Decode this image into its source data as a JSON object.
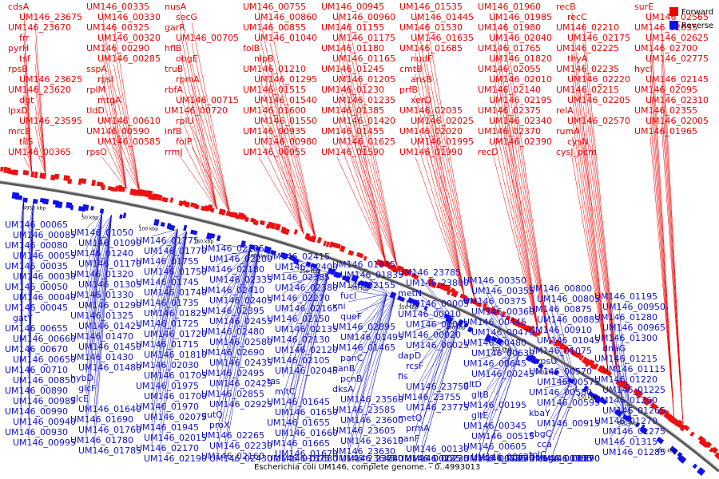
{
  "caption": "Escherichia coli UM146, complete genome. - 0..4993013",
  "legend": [
    {
      "label": "Forward",
      "color": "#ee0000"
    },
    {
      "label": "Reverse",
      "color": "#1010ee"
    }
  ],
  "ticks": [
    "4950 kbp",
    "50 kbp",
    "100 kbp",
    "150 kbp",
    "200 kbp",
    "250 kbp",
    "300 kbp",
    "350 kbp",
    "400 kbp",
    "450 kbp",
    "500 kbp",
    "550 kbp",
    "600 kbp",
    "650 kbp"
  ],
  "forward_labels": [
    "cdsA",
    "UM146_23675",
    "UM146_23670",
    "frr",
    "pyrH",
    "tsf",
    "rpsB",
    "UM146_23625",
    "UM146_23620",
    "dgt",
    "lpxD",
    "UM146_23595",
    "mrcB",
    "tilS",
    "UM146_00365",
    "UM146_00335",
    "UM146_00330",
    "UM146_00325",
    "UM146_00320",
    "UM146_00290",
    "UM146_00285",
    "sspA",
    "rpsI",
    "rplM",
    "mtgA",
    "tldD",
    "UM146_00610",
    "UM146_00590",
    "UM146_00585",
    "rpsO",
    "nusA",
    "secG",
    "garR",
    "UM146_00705",
    "hflB",
    "obgE",
    "truB",
    "rpmA",
    "rbfA",
    "UM146_00715",
    "UM146_00720",
    "rplU",
    "infB",
    "folP",
    "rrmJ",
    "UM146_00755",
    "UM146_00860",
    "UM146_00855",
    "UM146_01040",
    "folB",
    "nlpB",
    "UM146_01210",
    "UM146_01295",
    "UM146_01515",
    "UM146_01540",
    "UM146_01600",
    "UM146_01550",
    "UM146_00935",
    "UM146_00980",
    "UM146_00955",
    "UM146_00945",
    "UM146_00960",
    "UM146_01155",
    "UM146_01175",
    "UM146_01180",
    "UM146_01165",
    "UM146_01245",
    "UM146_01205",
    "UM146_01230",
    "UM146_01235",
    "UM146_01385",
    "UM146_01420",
    "UM146_01455",
    "UM146_01625",
    "UM146_01590",
    "UM146_01535",
    "UM146_01445",
    "UM146_01530",
    "UM146_01635",
    "UM146_01685",
    "nudF",
    "cmtB",
    "ansB",
    "prfB",
    "xerD",
    "UM146_02035",
    "UM146_02025",
    "UM146_02020",
    "UM146_01995",
    "UM146_01990",
    "UM146_01960",
    "UM146_01985",
    "UM146_01980",
    "UM146_02040",
    "UM146_01765",
    "UM146_01820",
    "UM146_02055",
    "UM146_02010",
    "UM146_02140",
    "UM146_02195",
    "UM146_02375",
    "UM146_02340",
    "UM146_02370",
    "UM146_02390",
    "recD",
    "recB",
    "recC",
    "UM146_02210",
    "UM146_02175",
    "UM146_02225",
    "thyA",
    "UM146_02235",
    "UM146_02220",
    "UM146_02215",
    "UM146_02205",
    "relA",
    "UM146_02570",
    "rumA",
    "cysN",
    "cysJ_pcm",
    "surE",
    "UM146_02565",
    "UM146_02635",
    "UM146_02625",
    "UM146_02700",
    "UM146_02775",
    "hycI",
    "UM146_02145",
    "UM146_02095",
    "UM146_02310",
    "UM146_02355",
    "UM146_02005",
    "UM146_01965"
  ],
  "reverse_labels": [
    "UM146_00065",
    "UM146_00085",
    "UM146_00080",
    "UM146_00055",
    "UM146_00035",
    "UM146_00030",
    "UM146_00050",
    "UM146_00040",
    "UM146_00045",
    "gatY",
    "UM146_00655",
    "UM146_00660",
    "UM146_00670",
    "UM146_00650",
    "UM146_00710",
    "UM146_00850",
    "UM146_00890",
    "UM146_00985",
    "UM146_00990",
    "UM146_00940",
    "UM146_00930",
    "UM146_00995",
    "UM146_01050",
    "UM146_01090",
    "UM146_01240",
    "UM146_01170",
    "UM146_01320",
    "UM146_01305",
    "UM146_01330",
    "UM146_01290",
    "UM146_01325",
    "UM146_01425",
    "UM146_01470",
    "UM146_01450",
    "UM146_01430",
    "UM146_01480",
    "hybD",
    "glcF",
    "glcE",
    "UM146_01640",
    "UM146_01690",
    "UM146_01760",
    "UM146_01780",
    "UM146_01785",
    "UM146_01775",
    "UM146_01770",
    "UM146_01755",
    "UM146_01750",
    "UM146_01745",
    "UM146_01740",
    "UM146_01735",
    "UM146_01825",
    "UM146_01725",
    "UM146_01720",
    "UM146_01715",
    "UM146_01810",
    "UM146_02030",
    "UM146_01705",
    "UM146_01975",
    "UM146_01700",
    "UM146_01970",
    "UM146_02075",
    "UM146_01945",
    "UM146_02015",
    "UM146_02170",
    "UM146_02190",
    "UM146_02185",
    "UM146_02200",
    "UM146_02180",
    "UM146_02335",
    "UM146_02410",
    "UM146_02405",
    "UM146_02395",
    "UM146_02455",
    "UM146_02480",
    "UM146_02580",
    "UM146_02690",
    "UM146_02435",
    "UM146_02495",
    "UM146_02425",
    "UM146_02855",
    "UM146_02925",
    "gutQ",
    "proX",
    "UM146_02265",
    "UM146_02230",
    "UM146_02160",
    "UM146_02430",
    "UM146_02415",
    "UM146_02400",
    "UM146_02385",
    "UM146_02380",
    "UM146_02270",
    "UM146_02165",
    "UM146_02150",
    "UM146_02135",
    "UM146_02130",
    "UM146_02120",
    "UM146_02105",
    "UM146_02045",
    "tas",
    "mltC",
    "UM146_01645",
    "UM146_01650",
    "UM146_01655",
    "UM146_01660",
    "UM146_01665",
    "UM146_01670",
    "UM146_01675",
    "UM146_01680",
    "UM146_01845",
    "UM146_01835",
    "UM146_02155",
    "fucI",
    "xni",
    "queF",
    "UM146_02895",
    "UM146_01495",
    "UM146_01465",
    "panC",
    "panB",
    "pcnB",
    "dksA",
    "UM146_23560",
    "UM146_23585",
    "UM146_23600",
    "UM146_23605",
    "UM146_23610",
    "UM146_23630",
    "UM146_23640",
    "UM146_23645",
    "UM146_23780",
    "UM146_23785",
    "UM146_23800",
    "metN",
    "UM146_00005",
    "UM146_00010",
    "UM146_00015",
    "UM146_00020",
    "UM146_00025",
    "dapD",
    "rcsF",
    "fis",
    "UM146_23750",
    "UM146_23755",
    "UM146_23775",
    "metQ",
    "prmA",
    "panF",
    "UM146_00130",
    "UM146_00135",
    "UM146_00220",
    "UM146_00225",
    "UM146_00235",
    "UM146_00350",
    "UM146_00355",
    "UM146_00375",
    "UM146_00360",
    "UM146_00445",
    "UM146_00470",
    "UM146_00480",
    "UM146_00630",
    "UM146_00645",
    "UM146_00245",
    "gltD",
    "gltB",
    "UM146_00195",
    "gltE",
    "UM146_00345",
    "UM146_00515",
    "UM146_00605",
    "UM146_00620",
    "UM146_00625",
    "UM146_00635",
    "UM146_00785",
    "UM146_00790",
    "UM146_00800",
    "UM146_00805",
    "UM146_00875",
    "UM146_00885",
    "UM146_00910",
    "UM146_01045",
    "UM146_01075",
    "rpsU",
    "UM146_00570",
    "UM146_00575",
    "UM146_00580",
    "UM146_00595",
    "kbaY",
    "UM146_00915",
    "ebgC",
    "cca",
    "tolC",
    "UM146_01190",
    "UM146_00905",
    "UM146_00870",
    "UM146_01160",
    "ebgA",
    "UM146_01195",
    "UM146_00950",
    "UM146_01280",
    "UM146_00965",
    "UM146_01300",
    "dnaG",
    "UM146_01215",
    "UM146_01115",
    "UM146_01220",
    "UM146_01225",
    "UM146_01260",
    "UM146_01265",
    "UM146_01270",
    "UM146_01275",
    "UM146_01315",
    "UM146_01285"
  ]
}
